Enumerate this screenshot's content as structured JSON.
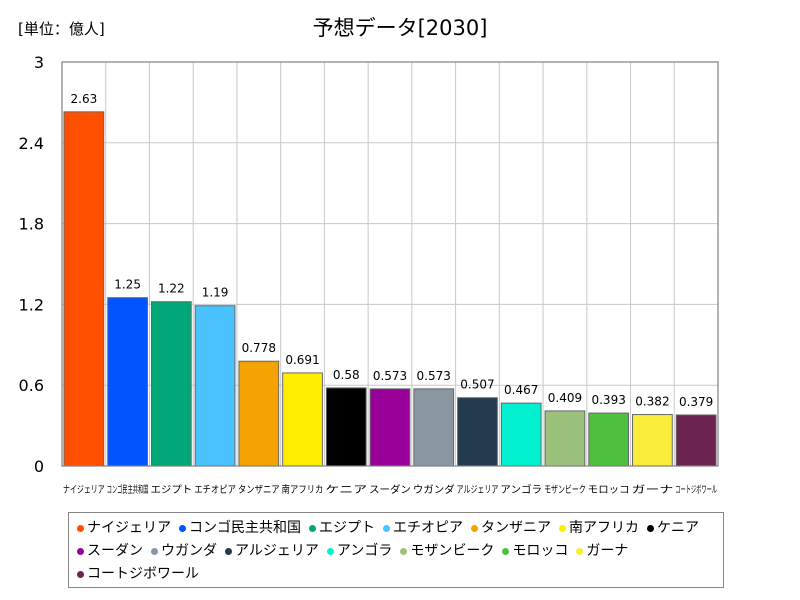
{
  "chart_data": {
    "type": "bar",
    "title": "予想データ[2030]",
    "unit_label": "[単位：億人]",
    "ylim": [
      0,
      3
    ],
    "yticks": [
      "0",
      "0.6",
      "1.2",
      "1.8",
      "2.4",
      "3"
    ],
    "ytick_values": [
      0,
      0.6,
      1.2,
      1.8,
      2.4,
      3
    ],
    "grid": true,
    "legend_position": "bottom",
    "categories": [
      "ナイジェリア",
      "コンゴ民主共和国",
      "エジプト",
      "エチオピア",
      "タンザニア",
      "南アフリカ",
      "ケニア",
      "スーダン",
      "ウガンダ",
      "アルジェリア",
      "アンゴラ",
      "モザンビーク",
      "モロッコ",
      "ガーナ",
      "コートジボワール"
    ],
    "values": [
      2.63,
      1.25,
      1.22,
      1.19,
      0.778,
      0.691,
      0.58,
      0.573,
      0.573,
      0.507,
      0.467,
      0.409,
      0.393,
      0.382,
      0.379
    ],
    "value_labels": [
      "2.63",
      "1.25",
      "1.22",
      "1.19",
      "0.778",
      "0.691",
      "0.58",
      "0.573",
      "0.573",
      "0.507",
      "0.467",
      "0.409",
      "0.393",
      "0.382",
      "0.379"
    ],
    "colors": [
      "#ff4f00",
      "#0055ff",
      "#00a878",
      "#49c2ff",
      "#f5a300",
      "#ffee00",
      "#000000",
      "#990099",
      "#8a96a0",
      "#233a4f",
      "#00f0d0",
      "#9bc17a",
      "#4fbf3f",
      "#f9ec3a",
      "#6b2350"
    ]
  }
}
